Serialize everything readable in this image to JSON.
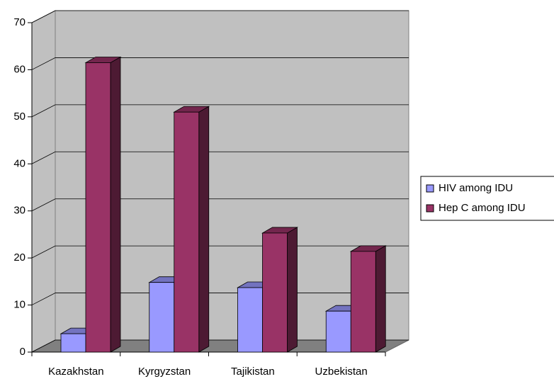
{
  "chart_data": {
    "type": "bar",
    "categories": [
      "Kazakhstan",
      "Kyrgyzstan",
      "Tajikistan",
      "Uzbekistan"
    ],
    "series": [
      {
        "name": "HIV among IDU",
        "color": "#9999ff",
        "values": [
          3.9,
          14.8,
          13.7,
          8.7
        ]
      },
      {
        "name": "Hep C among IDU",
        "color": "#993366",
        "values": [
          61.5,
          51,
          25.3,
          21.4
        ]
      }
    ],
    "ylim": [
      0,
      70
    ],
    "yticks": [
      0,
      10,
      20,
      30,
      40,
      50,
      60,
      70
    ],
    "grid": true,
    "legend": "right"
  }
}
